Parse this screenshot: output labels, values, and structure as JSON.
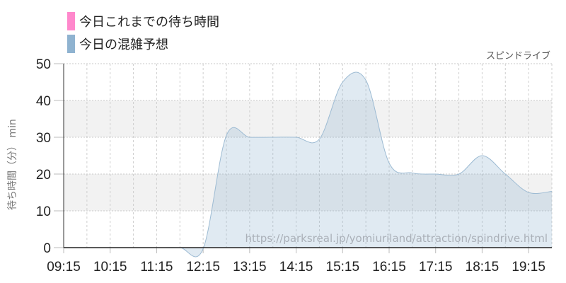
{
  "chart_data": {
    "type": "area",
    "subtitle": "スピンドライブ",
    "ylabel": "待ち時間（分） min",
    "ylim": [
      0,
      50
    ],
    "yticks": [
      0,
      10,
      20,
      30,
      40,
      50
    ],
    "xlim": [
      "09:15",
      "19:45"
    ],
    "xticks": [
      "09:15",
      "10:15",
      "11:15",
      "12:15",
      "13:15",
      "14:15",
      "15:15",
      "16:15",
      "17:15",
      "18:15",
      "19:15"
    ],
    "grid": true,
    "legend_placement": "top-left",
    "watermark": "https://parksreal.jp/yomiuriland/attraction/spindrive.html",
    "series": [
      {
        "name": "今日これまでの待ち時間",
        "color": "#ff88cc",
        "x": [],
        "values": []
      },
      {
        "name": "今日の混雑予想",
        "color": "#8fb3d0",
        "x": [
          "09:15",
          "09:45",
          "10:15",
          "10:45",
          "11:15",
          "11:45",
          "12:15",
          "12:45",
          "13:15",
          "13:45",
          "14:15",
          "14:45",
          "15:15",
          "15:45",
          "16:15",
          "16:45",
          "17:15",
          "17:45",
          "18:15",
          "18:45",
          "19:15",
          "19:45"
        ],
        "values": [
          0,
          0,
          0,
          0,
          0,
          0,
          -0.3,
          30.5,
          30,
          30,
          30,
          29.5,
          45,
          45.5,
          23,
          20.3,
          20,
          20,
          25,
          20,
          15,
          15.3
        ]
      }
    ]
  }
}
